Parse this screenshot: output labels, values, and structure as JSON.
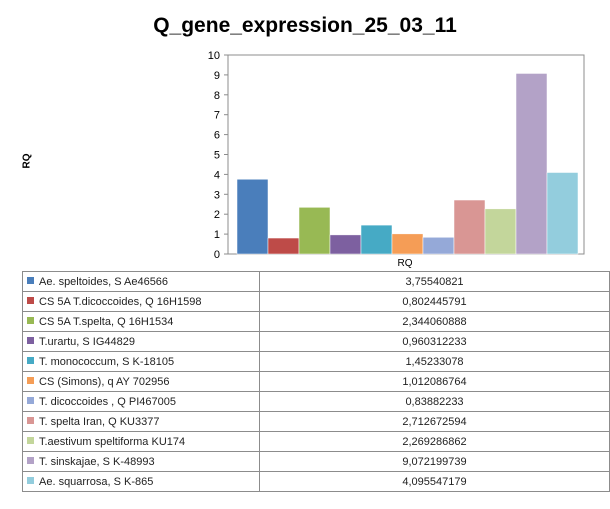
{
  "chart_data": {
    "type": "bar",
    "title": "Q_gene_expression_25_03_11",
    "ylabel": "RQ",
    "xlabel": "",
    "categories": [
      "RQ"
    ],
    "ylim": [
      0,
      10
    ],
    "yticks": [
      0,
      1,
      2,
      3,
      4,
      5,
      6,
      7,
      8,
      9,
      10
    ],
    "grid": false,
    "legend": "data-table-below",
    "series": [
      {
        "name": "Ae. speltoides, S  Ae46566",
        "value": 3.75540821,
        "value_text": "3,75540821",
        "color": "#4a7ebb"
      },
      {
        "name": "CS 5A T.dicoccoides, Q 16H1598",
        "value": 0.802445791,
        "value_text": "0,802445791",
        "color": "#be4b48"
      },
      {
        "name": "CS 5A T.spelta, Q 16H1534",
        "value": 2.344060888,
        "value_text": "2,344060888",
        "color": "#98b954"
      },
      {
        "name": "T.urartu, S IG44829",
        "value": 0.960312233,
        "value_text": "0,960312233",
        "color": "#7d60a0"
      },
      {
        "name": "T. monococcum,  S  K-18105",
        "value": 1.45233078,
        "value_text": "1,45233078",
        "color": "#46aac5"
      },
      {
        "name": "CS (Simons), q  AY 702956",
        "value": 1.012086764,
        "value_text": "1,012086764",
        "color": "#f59d56"
      },
      {
        "name": "T. dicoccoides , Q  PI467005",
        "value": 0.83882233,
        "value_text": "0,83882233",
        "color": "#95a9d8"
      },
      {
        "name": "T. spelta Iran, Q  KU3377",
        "value": 2.712672594,
        "value_text": "2,712672594",
        "color": "#d99694"
      },
      {
        "name": "T.aestivum speltiforma  KU174",
        "value": 2.269286862,
        "value_text": "2,269286862",
        "color": "#c3d69b"
      },
      {
        "name": "T. sinskajae,  S  K-48993",
        "value": 9.072199739,
        "value_text": "9,072199739",
        "color": "#b3a2c7"
      },
      {
        "name": "Ae. squarrosa, S  K-865",
        "value": 4.095547179,
        "value_text": "4,095547179",
        "color": "#93cddd"
      }
    ]
  }
}
